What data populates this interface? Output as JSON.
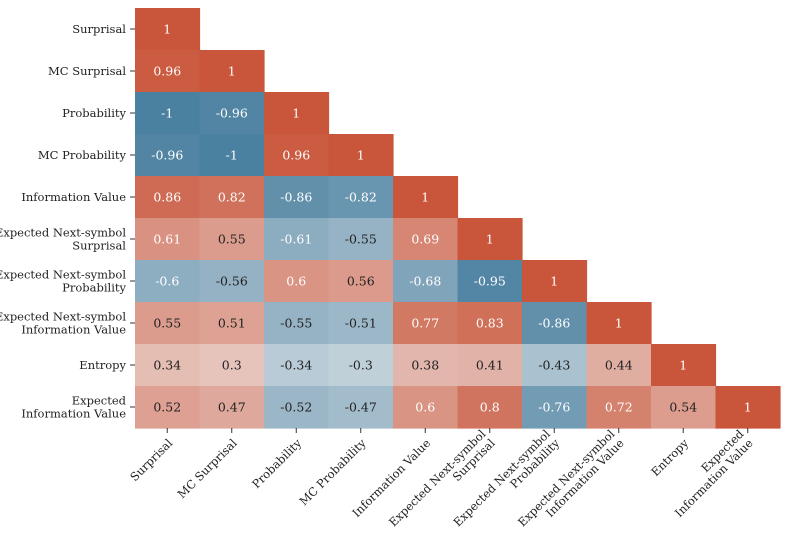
{
  "chart_data": {
    "type": "heatmap",
    "title": "",
    "xlabel": "",
    "ylabel": "",
    "color_range": [
      -1,
      1
    ],
    "colors": {
      "negative": "#4a80a0",
      "neutral": "#f2f2f2",
      "positive": "#c9553a"
    },
    "variables": [
      "Surprisal",
      "MC Surprisal",
      "Probability",
      "MC Probability",
      "Information Value",
      "Expected Next-symbol Surprisal",
      "Expected Next-symbol Probability",
      "Expected Next-symbol Information Value",
      "Entropy",
      "Expected Information Value"
    ],
    "row_labels": [
      [
        "Surprisal"
      ],
      [
        "MC Surprisal"
      ],
      [
        "Probability"
      ],
      [
        "MC Probability"
      ],
      [
        "Information Value"
      ],
      [
        "Expected Next-symbol",
        "Surprisal"
      ],
      [
        "Expected Next-symbol",
        "Probability"
      ],
      [
        "Expected Next-symbol",
        "Information Value"
      ],
      [
        "Entropy"
      ],
      [
        "Expected",
        "Information Value"
      ]
    ],
    "col_labels": [
      [
        "Surprisal"
      ],
      [
        "MC Surprisal"
      ],
      [
        "Probability"
      ],
      [
        "MC Probability"
      ],
      [
        "Information Value"
      ],
      [
        "Expected Next-symbol",
        "Surprisal"
      ],
      [
        "Expected Next-symbol",
        "Probability"
      ],
      [
        "Expected Next-symbol",
        "Information Value"
      ],
      [
        "Entropy"
      ],
      [
        "Expected",
        "Information Value"
      ]
    ],
    "matrix": [
      [
        1
      ],
      [
        0.96,
        1
      ],
      [
        -1,
        -0.96,
        1
      ],
      [
        -0.96,
        -1,
        0.96,
        1
      ],
      [
        0.86,
        0.82,
        -0.86,
        -0.82,
        1
      ],
      [
        0.61,
        0.55,
        -0.61,
        -0.55,
        0.69,
        1
      ],
      [
        -0.6,
        -0.56,
        0.6,
        0.56,
        -0.68,
        -0.95,
        1
      ],
      [
        0.55,
        0.51,
        -0.55,
        -0.51,
        0.77,
        0.83,
        -0.86,
        1
      ],
      [
        0.34,
        0.3,
        -0.34,
        -0.3,
        0.38,
        0.41,
        -0.43,
        0.44,
        1
      ],
      [
        0.52,
        0.47,
        -0.52,
        -0.47,
        0.6,
        0.8,
        -0.76,
        0.72,
        0.54,
        1
      ]
    ]
  }
}
